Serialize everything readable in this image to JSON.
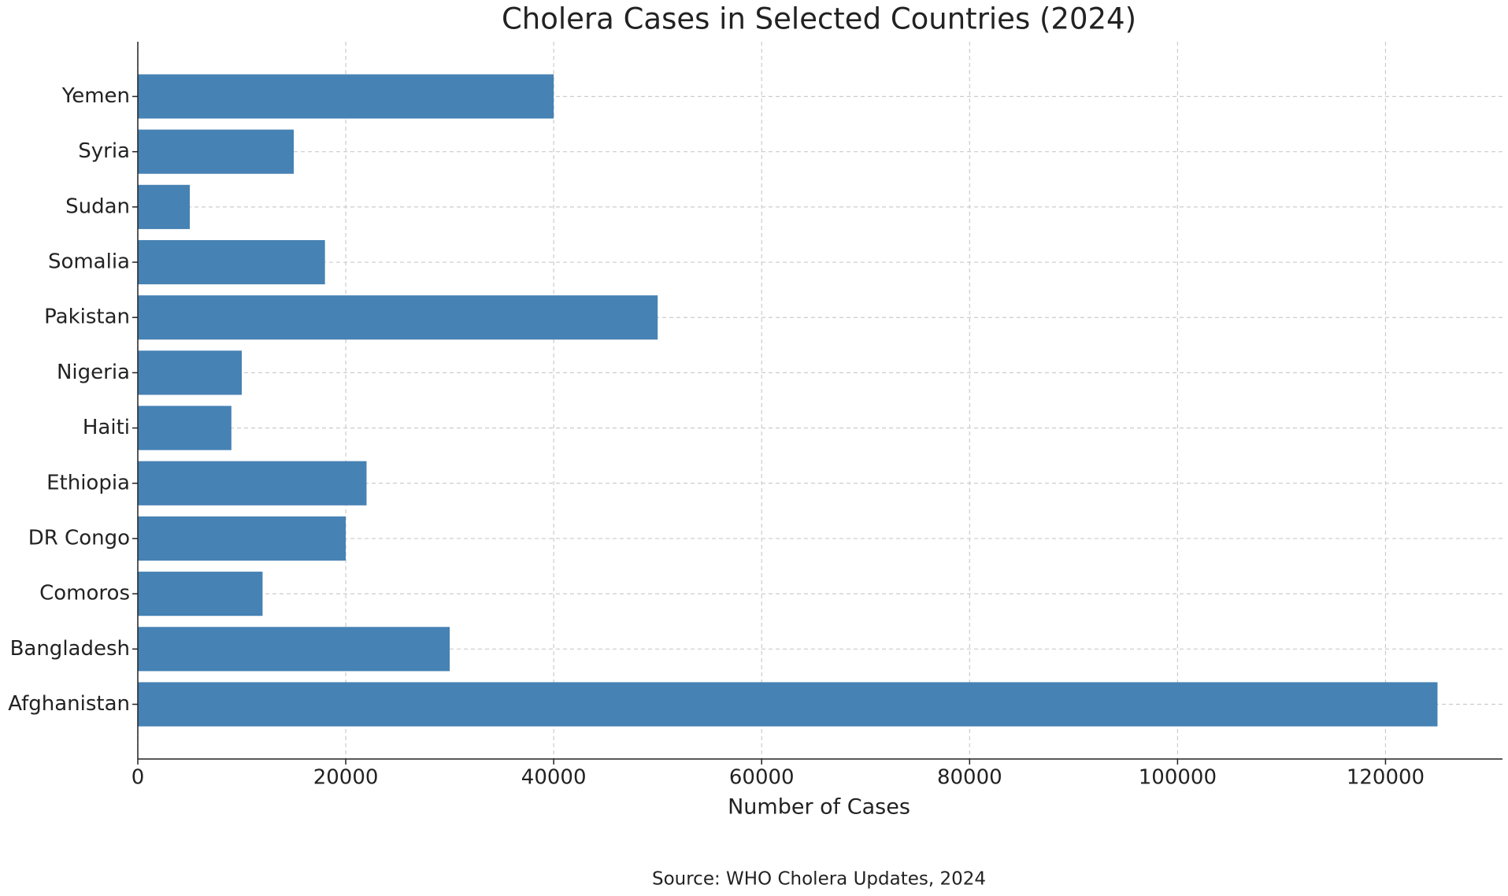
{
  "chart_data": {
    "type": "barh",
    "title": "Cholera Cases in Selected Countries (2024)",
    "categories": [
      "Afghanistan",
      "Bangladesh",
      "Comoros",
      "DR Congo",
      "Ethiopia",
      "Haiti",
      "Nigeria",
      "Pakistan",
      "Somalia",
      "Sudan",
      "Syria",
      "Yemen"
    ],
    "values": [
      125000,
      30000,
      12000,
      20000,
      22000,
      9000,
      10000,
      50000,
      18000,
      5000,
      15000,
      40000
    ],
    "color": "#4682b4",
    "x_label": "Number of Cases",
    "xlim": [
      0,
      131250
    ],
    "xticks": [
      0,
      20000,
      40000,
      60000,
      80000,
      100000,
      120000
    ],
    "grid": true,
    "source": "Source: WHO Cholera Updates, 2024"
  }
}
